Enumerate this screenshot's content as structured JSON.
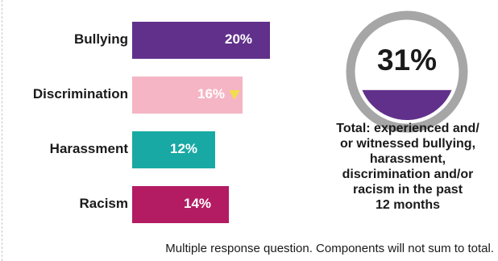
{
  "chart_data": [
    {
      "type": "bar",
      "orientation": "horizontal",
      "categories": [
        "Bullying",
        "Discrimination",
        "Harassment",
        "Racism"
      ],
      "values": [
        20,
        16,
        12,
        14
      ],
      "value_labels": [
        "20%",
        "16%",
        "12%",
        "14%"
      ],
      "colors": [
        "#61308b",
        "#f5b5c5",
        "#19a9a4",
        "#b31c63"
      ],
      "markers": [
        {
          "category": "Discrimination",
          "shape": "triangle-down",
          "color": "#f2dc50"
        }
      ],
      "xlim": [
        0,
        20
      ],
      "grid": false
    },
    {
      "type": "pie",
      "style": "gauge",
      "value": 31,
      "value_label": "31%",
      "fill_color": "#61308b",
      "ring_color": "#a6a6a6",
      "caption_lines": [
        "Total: experienced and/",
        "or witnessed bullying,",
        "harassment,",
        "discrimination and/or",
        "racism in the past",
        "12 months"
      ]
    }
  ],
  "footnote": "Multiple response question. Components will not sum to total."
}
